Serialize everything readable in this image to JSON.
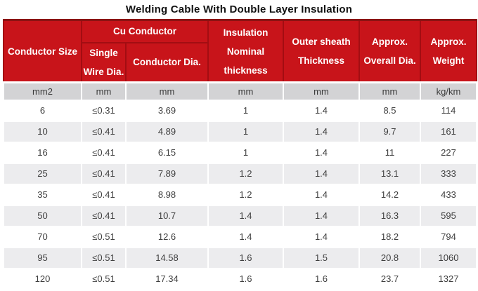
{
  "title": "Welding Cable With Double Layer Insulation",
  "colors": {
    "header_background": "#c8141a",
    "header_cell_border": "#a30d12",
    "table_top_border": "#8b1313",
    "header_text": "#ffffff",
    "units_row_background": "#d3d3d5",
    "alt_row_background": "#ececee",
    "body_text": "#3e3e3e"
  },
  "table": {
    "header": {
      "conductor_size": "Conductor Size",
      "cu_conductor": "Cu Conductor",
      "single_wire_dia": "Single\nWire Dia.",
      "conductor_dia": "Conductor Dia.",
      "insulation": "Insulation\nNominal\nthickness",
      "outer_sheath": "Outer sheath\nThickness",
      "overall_dia": "Approx.\nOverall Dia.",
      "weight": "Approx.\nWeight"
    },
    "units": [
      "mm2",
      "mm",
      "mm",
      "mm",
      "mm",
      "mm",
      "kg/km"
    ],
    "rows": [
      [
        "6",
        "≤0.31",
        "3.69",
        "1",
        "1.4",
        "8.5",
        "114"
      ],
      [
        "10",
        "≤0.41",
        "4.89",
        "1",
        "1.4",
        "9.7",
        "161"
      ],
      [
        "16",
        "≤0.41",
        "6.15",
        "1",
        "1.4",
        "11",
        "227"
      ],
      [
        "25",
        "≤0.41",
        "7.89",
        "1.2",
        "1.4",
        "13.1",
        "333"
      ],
      [
        "35",
        "≤0.41",
        "8.98",
        "1.2",
        "1.4",
        "14.2",
        "433"
      ],
      [
        "50",
        "≤0.41",
        "10.7",
        "1.4",
        "1.4",
        "16.3",
        "595"
      ],
      [
        "70",
        "≤0.51",
        "12.6",
        "1.4",
        "1.4",
        "18.2",
        "794"
      ],
      [
        "95",
        "≤0.51",
        "14.58",
        "1.6",
        "1.5",
        "20.8",
        "1060"
      ],
      [
        "120",
        "≤0.51",
        "17.34",
        "1.6",
        "1.6",
        "23.7",
        "1327"
      ]
    ]
  }
}
